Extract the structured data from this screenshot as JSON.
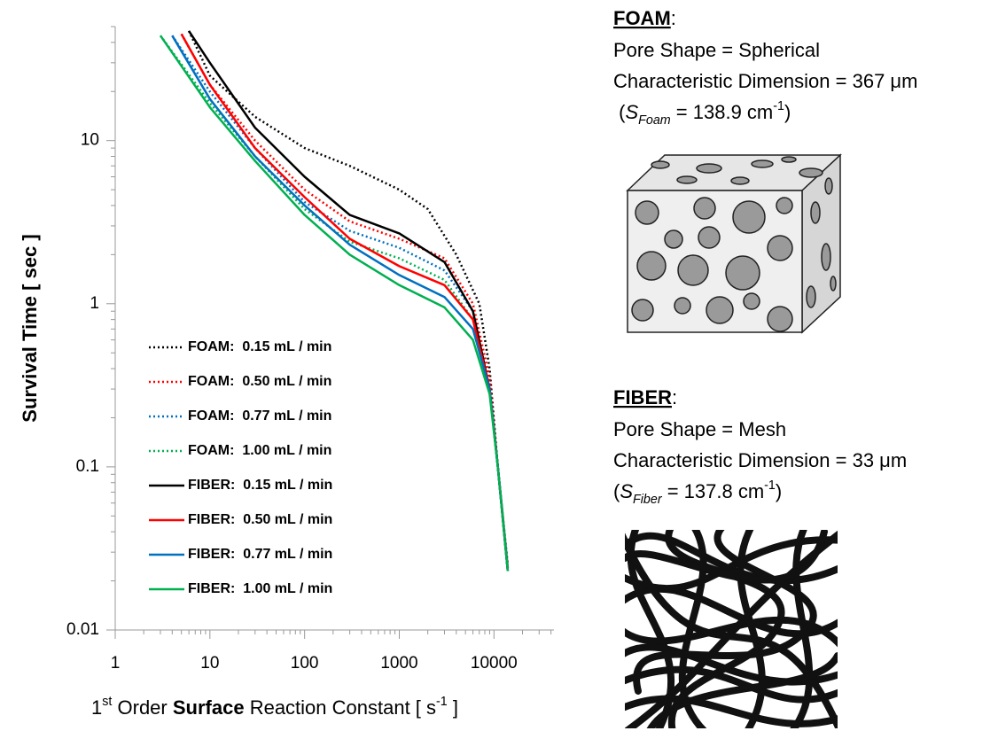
{
  "chart_data": {
    "type": "line",
    "y_label": "Survival Time [ sec ]",
    "x_label": [
      {
        "text": "1"
      },
      {
        "text": "st",
        "style": "sup"
      },
      {
        "text": " Order "
      },
      {
        "text": "Surface",
        "style": "bold"
      },
      {
        "text": " Reaction Constant [ s"
      },
      {
        "text": "-1",
        "style": "sup"
      },
      {
        "text": " ]"
      }
    ],
    "x_scale": "log",
    "y_scale": "log",
    "xlim": [
      1,
      43000
    ],
    "ylim": [
      0.01,
      50
    ],
    "xticks": [
      1,
      10,
      100,
      1000,
      10000
    ],
    "yticks": [
      0.01,
      0.1,
      1,
      10
    ],
    "grid": false,
    "legend": "left",
    "series": [
      {
        "name": "FOAM:  0.15 mL / min",
        "color": "#000000",
        "dash": "dotted",
        "x": [
          6,
          10,
          30,
          100,
          300,
          1000,
          2000,
          4000,
          7000,
          9000,
          11000,
          14000
        ],
        "values": [
          47,
          25,
          14,
          9,
          7,
          5,
          3.8,
          2,
          1,
          0.4,
          0.1,
          0.025
        ]
      },
      {
        "name": "FOAM:  0.50 mL / min",
        "color": "#ff0000",
        "dash": "dotted",
        "x": [
          5,
          10,
          30,
          100,
          300,
          1000,
          3000,
          6000,
          9000,
          11000,
          14000
        ],
        "values": [
          45,
          22,
          10,
          5,
          3.2,
          2.5,
          1.9,
          1.0,
          0.35,
          0.1,
          0.024
        ]
      },
      {
        "name": "FOAM:  0.77 mL / min",
        "color": "#0070c0",
        "dash": "dotted",
        "x": [
          4,
          10,
          30,
          100,
          300,
          1000,
          3000,
          6000,
          9000,
          11000,
          14000
        ],
        "values": [
          44,
          20,
          9,
          4.2,
          2.8,
          2.2,
          1.6,
          0.9,
          0.3,
          0.1,
          0.024
        ]
      },
      {
        "name": "FOAM:  1.00 mL / min",
        "color": "#00b050",
        "dash": "dotted",
        "x": [
          3,
          10,
          30,
          100,
          300,
          1000,
          3000,
          6000,
          9000,
          11000,
          14000
        ],
        "values": [
          44,
          17,
          8,
          3.8,
          2.4,
          1.9,
          1.4,
          0.8,
          0.3,
          0.1,
          0.024
        ]
      },
      {
        "name": "FIBER:  0.15 mL / min",
        "color": "#000000",
        "dash": "solid",
        "x": [
          6,
          10,
          30,
          100,
          300,
          1000,
          3000,
          6000,
          9000,
          11000,
          14000
        ],
        "values": [
          47,
          30,
          12,
          6,
          3.5,
          2.7,
          1.8,
          0.9,
          0.3,
          0.1,
          0.023
        ]
      },
      {
        "name": "FIBER:  0.50 mL / min",
        "color": "#ff0000",
        "dash": "solid",
        "x": [
          5,
          10,
          30,
          100,
          300,
          1000,
          3000,
          6000,
          9000,
          11000,
          14000
        ],
        "values": [
          45,
          22,
          9,
          4.5,
          2.5,
          1.7,
          1.3,
          0.8,
          0.3,
          0.1,
          0.023
        ]
      },
      {
        "name": "FIBER:  0.77 mL / min",
        "color": "#0070c0",
        "dash": "solid",
        "x": [
          4,
          10,
          30,
          100,
          300,
          1000,
          3000,
          6000,
          9000,
          11000,
          14000
        ],
        "values": [
          44,
          18,
          8,
          4,
          2.3,
          1.5,
          1.1,
          0.7,
          0.3,
          0.1,
          0.023
        ]
      },
      {
        "name": "FIBER:  1.00 mL / min",
        "color": "#00b050",
        "dash": "solid",
        "x": [
          3,
          10,
          30,
          100,
          300,
          1000,
          3000,
          6000,
          9000,
          11000,
          14000
        ],
        "values": [
          44,
          16,
          7.5,
          3.5,
          2,
          1.3,
          0.95,
          0.6,
          0.28,
          0.1,
          0.023
        ]
      }
    ]
  },
  "panels": [
    {
      "heading": [
        {
          "text": "FOAM",
          "style": "underline-bold"
        },
        {
          "text": ":"
        }
      ],
      "lines": [
        [
          {
            "text": "Pore Shape = Spherical"
          }
        ],
        [
          {
            "text": "Characteristic Dimension = 367 μm"
          }
        ],
        [
          {
            "text": " ("
          },
          {
            "text": "S",
            "style": "italic"
          },
          {
            "text": "Foam",
            "style": "sub-italic"
          },
          {
            "text": " = 138.9 cm"
          },
          {
            "text": "-1",
            "style": "sup"
          },
          {
            "text": ")"
          }
        ]
      ]
    },
    {
      "heading": [
        {
          "text": "FIBER",
          "style": "underline-bold"
        },
        {
          "text": ":"
        }
      ],
      "lines": [
        [
          {
            "text": "Pore Shape = Mesh"
          }
        ],
        [
          {
            "text": "Characteristic Dimension = 33 μm"
          }
        ],
        [
          {
            "text": "("
          },
          {
            "text": "S",
            "style": "italic"
          },
          {
            "text": "Fiber",
            "style": "sub-italic"
          },
          {
            "text": " = 137.8 cm"
          },
          {
            "text": "-1",
            "style": "sup"
          },
          {
            "text": ")"
          }
        ]
      ]
    }
  ]
}
